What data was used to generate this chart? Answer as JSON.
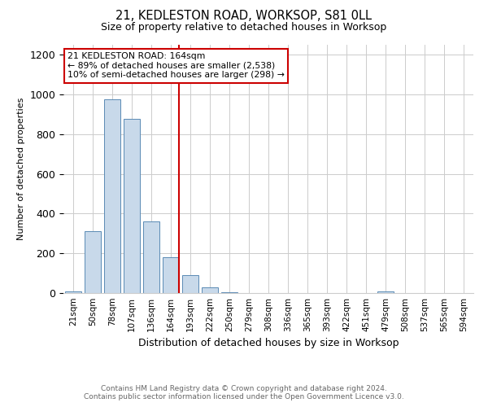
{
  "title": "21, KEDLESTON ROAD, WORKSOP, S81 0LL",
  "subtitle": "Size of property relative to detached houses in Worksop",
  "xlabel": "Distribution of detached houses by size in Worksop",
  "ylabel": "Number of detached properties",
  "footer_line1": "Contains HM Land Registry data © Crown copyright and database right 2024.",
  "footer_line2": "Contains public sector information licensed under the Open Government Licence v3.0.",
  "categories": [
    "21sqm",
    "50sqm",
    "78sqm",
    "107sqm",
    "136sqm",
    "164sqm",
    "193sqm",
    "222sqm",
    "250sqm",
    "279sqm",
    "308sqm",
    "336sqm",
    "365sqm",
    "393sqm",
    "422sqm",
    "451sqm",
    "479sqm",
    "508sqm",
    "537sqm",
    "565sqm",
    "594sqm"
  ],
  "values": [
    10,
    310,
    975,
    875,
    360,
    180,
    90,
    28,
    5,
    0,
    0,
    0,
    2,
    0,
    0,
    0,
    10,
    0,
    0,
    0,
    0
  ],
  "bar_color": "#c8d9ea",
  "bar_edge_color": "#5a8ab5",
  "marker_index": 5,
  "marker_color": "#cc0000",
  "annotation_title": "21 KEDLESTON ROAD: 164sqm",
  "annotation_line1": "← 89% of detached houses are smaller (2,538)",
  "annotation_line2": "10% of semi-detached houses are larger (298) →",
  "annotation_box_color": "#cc0000",
  "ylim": [
    0,
    1250
  ],
  "yticks": [
    0,
    200,
    400,
    600,
    800,
    1000,
    1200
  ],
  "background_color": "#ffffff",
  "grid_color": "#cccccc"
}
